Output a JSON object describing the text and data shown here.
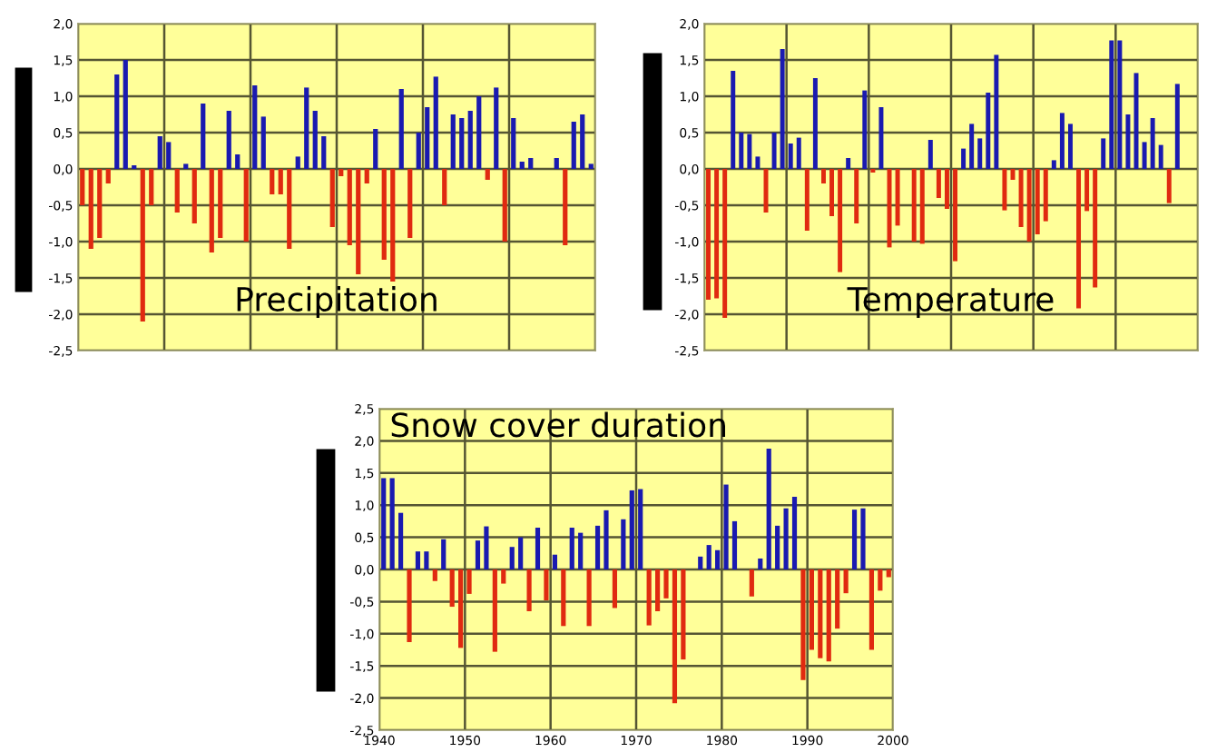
{
  "chart_data": [
    {
      "type": "bar",
      "title": "Precipitation",
      "categories": [
        null,
        null,
        null,
        null,
        null,
        null,
        null,
        null,
        null,
        null,
        null,
        null,
        null,
        null,
        null,
        null,
        null,
        null,
        null,
        null,
        null,
        null,
        null,
        null,
        null,
        null,
        null,
        null,
        null,
        null,
        null,
        null,
        null,
        null,
        null,
        null,
        null,
        null,
        null,
        null,
        null,
        null,
        null,
        null,
        null,
        null,
        null,
        null,
        null,
        null,
        null,
        null,
        null,
        null,
        null,
        null,
        null,
        null,
        null,
        null
      ],
      "values": [
        -0.5,
        -1.1,
        -0.95,
        -0.2,
        1.3,
        1.5,
        0.05,
        -2.1,
        -0.5,
        0.45,
        0.37,
        -0.6,
        0.07,
        -0.75,
        0.9,
        -1.15,
        -0.95,
        0.8,
        0.2,
        -1.0,
        1.15,
        0.72,
        -0.35,
        -0.35,
        -1.1,
        0.17,
        1.12,
        0.8,
        0.45,
        -0.8,
        -0.1,
        -1.05,
        -1.45,
        -0.2,
        0.55,
        -1.25,
        -1.55,
        1.1,
        -0.95,
        0.5,
        0.85,
        1.27,
        -0.5,
        0.75,
        0.7,
        0.8,
        1.0,
        -0.15,
        1.12,
        -1.0,
        0.7,
        0.1,
        0.15,
        0.0,
        null,
        0.15,
        -1.05,
        0.65,
        0.75,
        0.07
      ],
      "colors": [
        "#e02a10",
        "#e02a10",
        "#e02a10",
        "#e02a10",
        "#1a1ab0",
        "#1a1ab0",
        "#1a1ab0",
        "#e02a10",
        "#e02a10",
        "#1a1ab0",
        "#1a1ab0",
        "#e02a10",
        "#1a1ab0",
        "#e02a10",
        "#1a1ab0",
        "#e02a10",
        "#e02a10",
        "#1a1ab0",
        "#1a1ab0",
        "#e02a10",
        "#1a1ab0",
        "#1a1ab0",
        "#e02a10",
        "#e02a10",
        "#e02a10",
        "#1a1ab0",
        "#1a1ab0",
        "#1a1ab0",
        "#1a1ab0",
        "#e02a10",
        "#e02a10",
        "#e02a10",
        "#e02a10",
        "#e02a10",
        "#1a1ab0",
        "#e02a10",
        "#e02a10",
        "#1a1ab0",
        "#e02a10",
        "#1a1ab0",
        "#1a1ab0",
        "#1a1ab0",
        "#e02a10",
        "#1a1ab0",
        "#1a1ab0",
        "#1a1ab0",
        "#1a1ab0",
        "#e02a10",
        "#1a1ab0",
        "#e02a10",
        "#1a1ab0",
        "#1a1ab0",
        "#1a1ab0",
        "#1a1ab0",
        "#1a1ab0",
        "#1a1ab0",
        "#e02a10",
        "#1a1ab0",
        "#1a1ab0",
        "#1a1ab0"
      ],
      "ylim": [
        -2.5,
        2.0
      ],
      "yticks": [
        {
          "value": -2.5,
          "label": "-2,5"
        },
        {
          "value": -2.0,
          "label": "-2,0"
        },
        {
          "value": -1.5,
          "label": "-1,5"
        },
        {
          "value": -1.0,
          "label": "-1,0"
        },
        {
          "value": -0.5,
          "label": "-0,5"
        },
        {
          "value": 0.0,
          "label": "0,0"
        },
        {
          "value": 0.5,
          "label": "0,5"
        },
        {
          "value": 1.0,
          "label": "1,0"
        },
        {
          "value": 1.5,
          "label": "1,5"
        },
        {
          "value": 2.0,
          "label": "2,0"
        }
      ],
      "tick_labels": "y",
      "grid": true
    },
    {
      "type": "bar",
      "title": "Temperature",
      "categories": [
        null,
        null,
        null,
        null,
        null,
        null,
        null,
        null,
        null,
        null,
        null,
        null,
        null,
        null,
        null,
        null,
        null,
        null,
        null,
        null,
        null,
        null,
        null,
        null,
        null,
        null,
        null,
        null,
        null,
        null,
        null,
        null,
        null,
        null,
        null,
        null,
        null,
        null,
        null,
        null,
        null,
        null,
        null,
        null,
        null,
        null,
        null,
        null,
        null,
        null,
        null,
        null,
        null,
        null,
        null,
        null,
        null,
        null,
        null,
        null
      ],
      "values": [
        -1.8,
        -1.78,
        -2.05,
        1.35,
        0.5,
        0.48,
        0.17,
        -0.6,
        0.5,
        1.65,
        0.35,
        0.43,
        -0.85,
        1.25,
        -0.2,
        -0.65,
        -1.42,
        0.15,
        -0.75,
        1.08,
        -0.05,
        0.85,
        -1.08,
        -0.78,
        null,
        -1.0,
        -1.03,
        0.4,
        -0.4,
        -0.55,
        -1.27,
        0.28,
        0.62,
        0.42,
        1.05,
        1.57,
        -0.57,
        -0.15,
        -0.8,
        -1.0,
        -0.9,
        -0.72,
        0.12,
        0.77,
        0.62,
        -1.92,
        -0.58,
        -1.63,
        0.42,
        1.77,
        1.77,
        0.75,
        1.32,
        0.37,
        0.7,
        0.33,
        -0.47,
        1.17,
        null,
        null
      ],
      "colors": [
        "#e02a10",
        "#e02a10",
        "#e02a10",
        "#1a1ab0",
        "#1a1ab0",
        "#1a1ab0",
        "#1a1ab0",
        "#e02a10",
        "#1a1ab0",
        "#1a1ab0",
        "#1a1ab0",
        "#1a1ab0",
        "#e02a10",
        "#1a1ab0",
        "#e02a10",
        "#e02a10",
        "#e02a10",
        "#1a1ab0",
        "#e02a10",
        "#1a1ab0",
        "#e02a10",
        "#1a1ab0",
        "#e02a10",
        "#e02a10",
        "#e02a10",
        "#e02a10",
        "#e02a10",
        "#1a1ab0",
        "#e02a10",
        "#e02a10",
        "#e02a10",
        "#1a1ab0",
        "#1a1ab0",
        "#1a1ab0",
        "#1a1ab0",
        "#1a1ab0",
        "#e02a10",
        "#e02a10",
        "#e02a10",
        "#e02a10",
        "#e02a10",
        "#e02a10",
        "#1a1ab0",
        "#1a1ab0",
        "#1a1ab0",
        "#e02a10",
        "#e02a10",
        "#e02a10",
        "#1a1ab0",
        "#1a1ab0",
        "#1a1ab0",
        "#1a1ab0",
        "#1a1ab0",
        "#1a1ab0",
        "#1a1ab0",
        "#1a1ab0",
        "#e02a10",
        "#1a1ab0",
        "#1a1ab0",
        "#1a1ab0"
      ],
      "ylim": [
        -2.5,
        2.0
      ],
      "yticks": [
        {
          "value": -2.5,
          "label": "-2,5"
        },
        {
          "value": -2.0,
          "label": "-2,0"
        },
        {
          "value": -1.5,
          "label": "-1,5"
        },
        {
          "value": -1.0,
          "label": "-1,0"
        },
        {
          "value": -0.5,
          "label": "-0,5"
        },
        {
          "value": 0.0,
          "label": "0,0"
        },
        {
          "value": 0.5,
          "label": "0,5"
        },
        {
          "value": 1.0,
          "label": "1,0"
        },
        {
          "value": 1.5,
          "label": "1,5"
        },
        {
          "value": 2.0,
          "label": "2,0"
        }
      ],
      "tick_labels": "y",
      "grid": true
    },
    {
      "type": "bar",
      "title": "Snow cover duration",
      "x": [
        1940.5,
        1941.5,
        1942.5,
        1943.5,
        1944.5,
        1945.5,
        1946.5,
        1947.5,
        1948.5,
        1949.5,
        1950.5,
        1951.5,
        1952.5,
        1953.5,
        1954.5,
        1955.5,
        1956.5,
        1957.5,
        1958.5,
        1959.5,
        1960.5,
        1961.5,
        1962.5,
        1963.5,
        1964.5,
        1965.5,
        1966.5,
        1967.5,
        1968.5,
        1969.5,
        1970.5,
        1971.5,
        1972.5,
        1973.5,
        1974.5,
        1975.5,
        1976.5,
        1977.5,
        1978.5,
        1979.5,
        1980.5,
        1981.5,
        1982.5,
        1983.5,
        1984.5,
        1985.5,
        1986.5,
        1987.5,
        1988.5,
        1989.5,
        1990.5,
        1991.5,
        1992.5,
        1993.5,
        1994.5,
        1995.5,
        1996.5,
        1997.5,
        1998.5,
        1999.5
      ],
      "values": [
        1.42,
        1.42,
        0.88,
        -1.13,
        0.28,
        0.28,
        -0.18,
        0.47,
        -0.58,
        -1.22,
        -0.38,
        0.45,
        0.67,
        -1.28,
        -0.22,
        0.35,
        0.5,
        -0.65,
        0.65,
        -0.48,
        0.23,
        -0.88,
        0.65,
        0.57,
        -0.88,
        0.68,
        0.92,
        -0.6,
        0.78,
        1.23,
        1.25,
        -0.87,
        -0.65,
        -0.45,
        -2.08,
        -1.4,
        null,
        0.2,
        0.38,
        0.3,
        1.32,
        0.75,
        null,
        -0.42,
        0.17,
        1.88,
        0.68,
        0.95,
        1.13,
        -1.72,
        -1.25,
        -1.38,
        -1.43,
        -0.92,
        -0.37,
        0.93,
        0.95,
        -1.25,
        -0.33,
        -0.12
      ],
      "colors": [
        "#1a1ab0",
        "#1a1ab0",
        "#1a1ab0",
        "#e02a10",
        "#1a1ab0",
        "#1a1ab0",
        "#e02a10",
        "#1a1ab0",
        "#e02a10",
        "#e02a10",
        "#e02a10",
        "#1a1ab0",
        "#1a1ab0",
        "#e02a10",
        "#e02a10",
        "#1a1ab0",
        "#1a1ab0",
        "#e02a10",
        "#1a1ab0",
        "#e02a10",
        "#1a1ab0",
        "#e02a10",
        "#1a1ab0",
        "#1a1ab0",
        "#e02a10",
        "#1a1ab0",
        "#1a1ab0",
        "#e02a10",
        "#1a1ab0",
        "#1a1ab0",
        "#1a1ab0",
        "#e02a10",
        "#e02a10",
        "#e02a10",
        "#e02a10",
        "#e02a10",
        "#e02a10",
        "#1a1ab0",
        "#1a1ab0",
        "#1a1ab0",
        "#1a1ab0",
        "#1a1ab0",
        "#e02a10",
        "#e02a10",
        "#1a1ab0",
        "#1a1ab0",
        "#1a1ab0",
        "#1a1ab0",
        "#1a1ab0",
        "#e02a10",
        "#e02a10",
        "#e02a10",
        "#e02a10",
        "#e02a10",
        "#e02a10",
        "#1a1ab0",
        "#1a1ab0",
        "#e02a10",
        "#e02a10",
        "#e02a10"
      ],
      "xlim": [
        1940,
        2000
      ],
      "xticks": [
        1940,
        1950,
        1960,
        1970,
        1980,
        1990,
        2000
      ],
      "ylim": [
        -2.5,
        2.5
      ],
      "yticks": [
        {
          "value": -2.5,
          "label": "-2,5"
        },
        {
          "value": -2.0,
          "label": "-2,0"
        },
        {
          "value": -1.5,
          "label": "-1,5"
        },
        {
          "value": -1.0,
          "label": "-1,0"
        },
        {
          "value": -0.5,
          "label": "-0,5"
        },
        {
          "value": 0.0,
          "label": "0,0"
        },
        {
          "value": 0.5,
          "label": "0,5"
        },
        {
          "value": 1.0,
          "label": "1,0"
        },
        {
          "value": 1.5,
          "label": "1,5"
        },
        {
          "value": 2.0,
          "label": "2,0"
        },
        {
          "value": 2.5,
          "label": "2,5"
        }
      ],
      "grid": true
    }
  ]
}
